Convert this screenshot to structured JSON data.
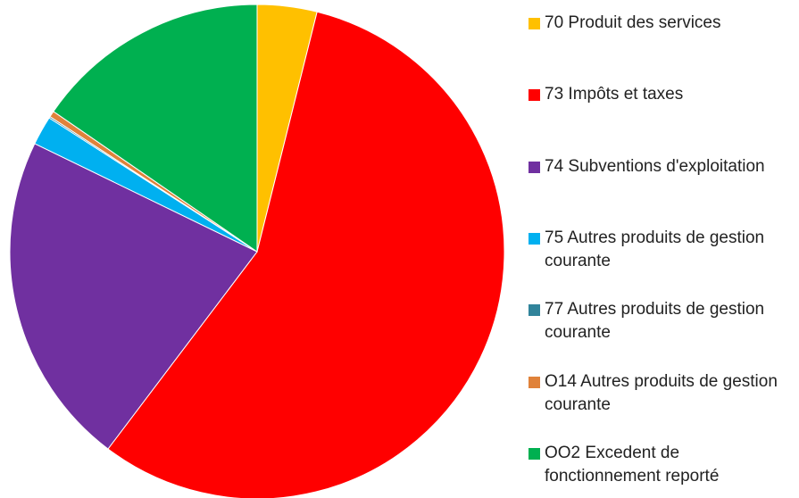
{
  "chart_data": {
    "type": "pie",
    "categories": [
      "70 Produit des services",
      "73 Impôts et taxes",
      "74 Subventions d'exploitation",
      "75 Autres produits de gestion courante",
      "77 Autres produits de gestion courante",
      "O14 Autres produits de gestion courante",
      "OO2 Excedent de fonctionnement reporté"
    ],
    "values": [
      3.9,
      56.4,
      21.9,
      1.9,
      0.1,
      0.4,
      15.4
    ],
    "colors": [
      "#ffc000",
      "#ff0000",
      "#7030a0",
      "#00b0f0",
      "#31849b",
      "#e0823a",
      "#00b050"
    ],
    "legend": "right"
  }
}
